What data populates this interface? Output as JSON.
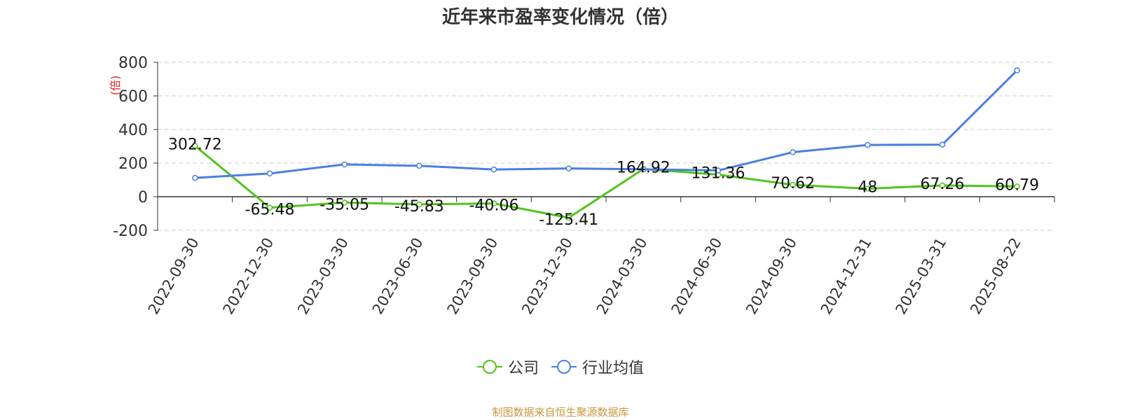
{
  "chart_data": {
    "type": "line",
    "title": "近年来市盈率变化情况（倍）",
    "ylabel": "(倍)",
    "xlabel": "",
    "ylim": [
      -200,
      800
    ],
    "yticks": [
      -200,
      0,
      200,
      400,
      600,
      800
    ],
    "grid": true,
    "legend_position": "bottom",
    "categories": [
      "2022-09-30",
      "2022-12-30",
      "2023-03-30",
      "2023-06-30",
      "2023-09-30",
      "2023-12-30",
      "2024-03-30",
      "2024-06-30",
      "2024-09-30",
      "2024-12-31",
      "2025-03-31",
      "2025-08-22"
    ],
    "series": [
      {
        "name": "公司",
        "color": "#52c41a",
        "values": [
          302.72,
          -65.48,
          -35.05,
          -45.83,
          -40.06,
          -125.41,
          164.92,
          131.36,
          70.62,
          48,
          67.26,
          60.79
        ],
        "labels": [
          "302.72",
          "-65.48",
          "-35.05",
          "-45.83",
          "-40.06",
          "-125.41",
          "164.92",
          "131.36",
          "70.62",
          "48",
          "67.26",
          "60.79"
        ]
      },
      {
        "name": "行业均值",
        "color": "#4a7fe0",
        "values": [
          112,
          138,
          192,
          184,
          162,
          168,
          163,
          156,
          265,
          308,
          310,
          752
        ]
      }
    ]
  },
  "footer": {
    "source": "制图数据来自恒生聚源数据库",
    "source_color": "#c8963e"
  },
  "colors": {
    "axis": "#333333",
    "grid": "#cccccc",
    "ylabel": "#e02020"
  }
}
